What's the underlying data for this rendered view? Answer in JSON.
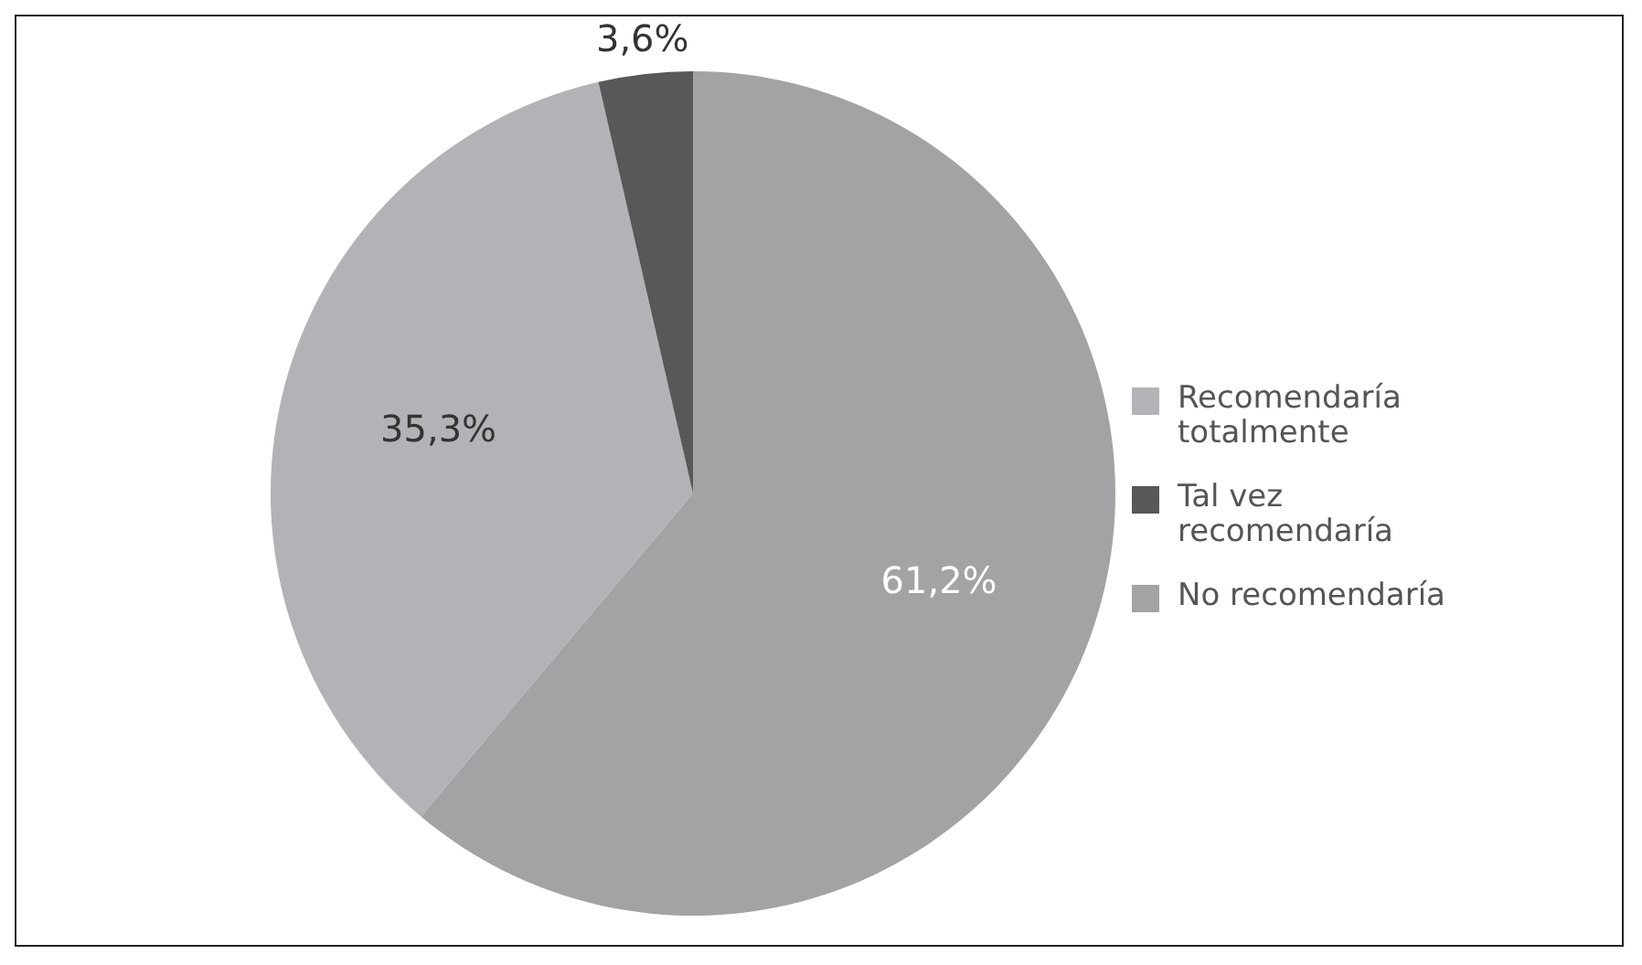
{
  "chart_data": {
    "type": "pie",
    "categories": [
      "Recomendaría totalmente",
      "Tal vez recomendaría",
      "No recomendaría"
    ],
    "values": [
      35.3,
      3.6,
      61.2
    ],
    "colors": [
      "#b2b3b6",
      "#58585a",
      "#a3a3a6"
    ],
    "value_labels": [
      "35,3%",
      "3,6%",
      "61,2%"
    ],
    "legend": "right"
  }
}
